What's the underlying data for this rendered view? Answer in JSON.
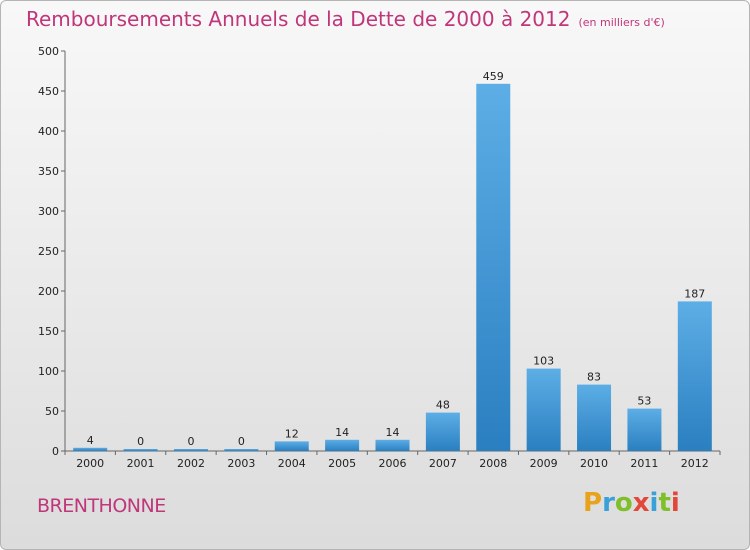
{
  "header": {
    "title": "Remboursements Annuels de la Dette de 2000 à 2012",
    "unit": "(en milliers d'€)"
  },
  "footer": {
    "commune": "BRENTHONNE",
    "logo_text": "Proxiti",
    "logo_colors": [
      "#e9a21b",
      "#3aa0d8",
      "#7fbf2a",
      "#e2473a",
      "#3aa0d8",
      "#7fbf2a",
      "#e2473a"
    ]
  },
  "colors": {
    "title": "#c0367a",
    "bar_top": "#5daee6",
    "bar_bottom": "#2a7fc0"
  },
  "chart_data": {
    "type": "bar",
    "title": "Remboursements Annuels de la Dette de 2000 à 2012",
    "categories": [
      "2000",
      "2001",
      "2002",
      "2003",
      "2004",
      "2005",
      "2006",
      "2007",
      "2008",
      "2009",
      "2010",
      "2011",
      "2012"
    ],
    "values": [
      4,
      0,
      0,
      0,
      12,
      14,
      14,
      48,
      459,
      103,
      83,
      53,
      187
    ],
    "ylim": [
      0,
      500
    ],
    "yticks": [
      0,
      50,
      100,
      150,
      200,
      250,
      300,
      350,
      400,
      450,
      500
    ],
    "grid": false,
    "legend": "none"
  }
}
